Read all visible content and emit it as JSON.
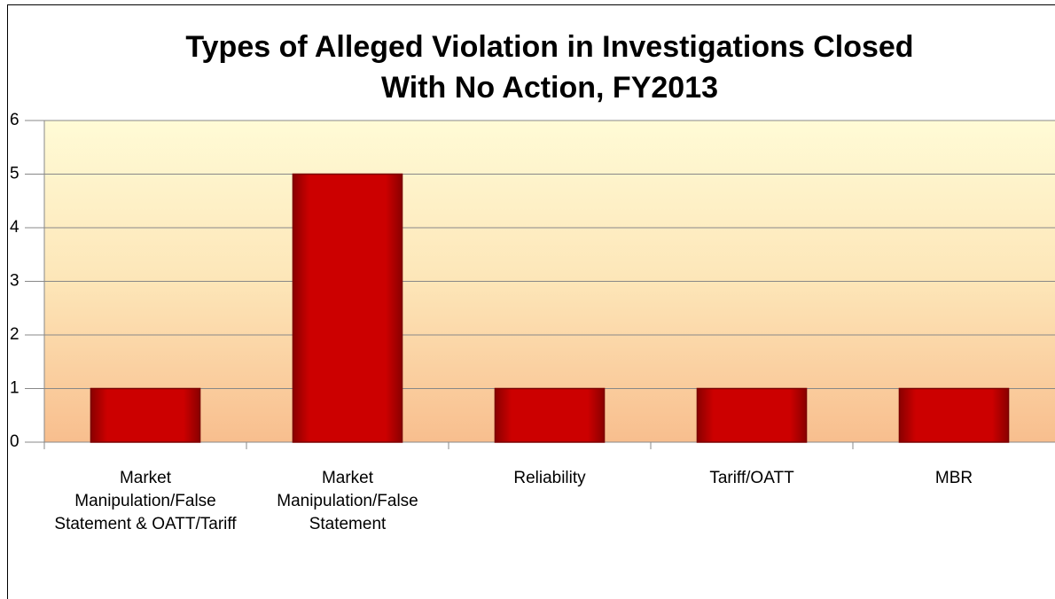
{
  "chart_data": {
    "type": "bar",
    "title": "Types of Alleged Violation in Investigations Closed With No Action, FY2013",
    "categories": [
      "Market Manipulation/False Statement & OATT/Tariff",
      "Market Manipulation/False Statement",
      "Reliability",
      "Tariff/OATT",
      "MBR"
    ],
    "values": [
      1,
      5,
      1,
      1,
      1
    ],
    "color": "#cc0000",
    "ylim": [
      0,
      6
    ],
    "yticks": [
      0,
      1,
      2,
      3,
      4,
      5,
      6
    ],
    "grid": true
  }
}
